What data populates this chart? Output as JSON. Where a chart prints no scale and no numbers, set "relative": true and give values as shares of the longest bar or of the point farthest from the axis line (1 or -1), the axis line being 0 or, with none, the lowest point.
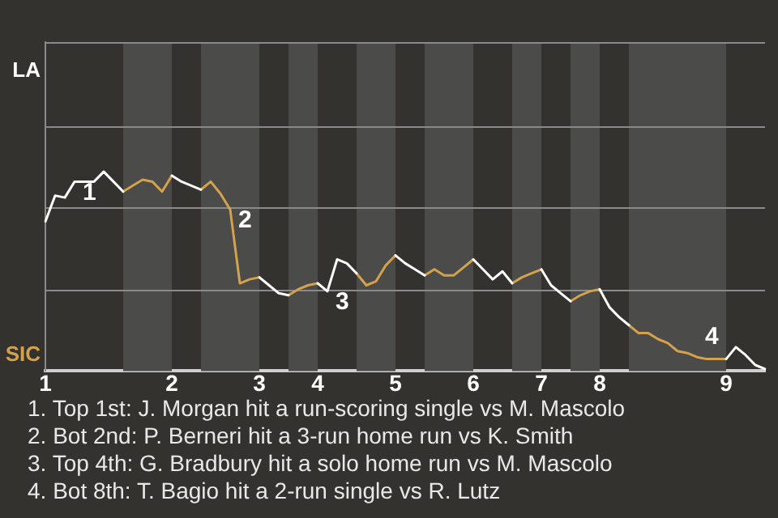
{
  "chart_data": {
    "type": "line",
    "relative": true,
    "marker": "none",
    "ref_lines": [
      {
        "axis": "y",
        "value": 0.41,
        "color": "#8a8a8a"
      },
      {
        "axis": "y",
        "value": 0.82,
        "color": "#8a8a8a"
      },
      {
        "axis": "y",
        "value": 1.23,
        "color": "#8a8a8a"
      },
      {
        "axis": "y",
        "value": 1.65,
        "color": "#8a8a8a"
      }
    ],
    "categories": [
      "1",
      null,
      null,
      null,
      null,
      null,
      null,
      null,
      null,
      null,
      null,
      null,
      null,
      "2",
      null,
      null,
      null,
      null,
      null,
      null,
      null,
      null,
      "3",
      null,
      null,
      null,
      null,
      null,
      "4",
      null,
      null,
      null,
      null,
      null,
      null,
      null,
      "5",
      null,
      null,
      null,
      null,
      null,
      null,
      null,
      "6",
      null,
      null,
      null,
      null,
      null,
      null,
      "7",
      null,
      null,
      null,
      null,
      null,
      "8",
      null,
      null,
      null,
      null,
      null,
      null,
      null,
      null,
      null,
      null,
      null,
      null,
      "9",
      null,
      null,
      null,
      null
    ],
    "series": [
      {
        "name": "LA",
        "color": "#ffffff",
        "values": [
          0.75,
          0.88,
          0.87,
          0.95,
          0.95,
          0.95,
          1.0,
          0.95,
          0.9,
          null,
          null,
          null,
          null,
          0.98,
          0.95,
          0.93,
          0.91,
          null,
          null,
          null,
          null,
          null,
          0.47,
          0.43,
          0.39,
          0.38,
          null,
          null,
          0.44,
          0.4,
          0.56,
          0.54,
          0.49,
          null,
          null,
          null,
          0.58,
          0.54,
          0.51,
          0.48,
          null,
          null,
          null,
          null,
          0.56,
          0.51,
          0.46,
          0.5,
          0.44,
          null,
          null,
          0.51,
          0.43,
          0.39,
          0.35,
          null,
          null,
          0.41,
          0.32,
          0.27,
          0.23,
          null,
          null,
          null,
          null,
          null,
          null,
          null,
          null,
          null,
          0.06,
          0.12,
          0.08,
          0.03,
          0.01
        ],
        "line_style": "solid"
      },
      {
        "name": "SIC",
        "color": "#d4a24c",
        "values": [
          null,
          null,
          null,
          null,
          null,
          null,
          null,
          null,
          0.9,
          0.93,
          0.96,
          0.95,
          0.9,
          0.98,
          null,
          null,
          0.91,
          0.95,
          0.89,
          0.81,
          0.44,
          0.46,
          0.47,
          null,
          null,
          0.38,
          0.41,
          0.43,
          0.44,
          null,
          null,
          null,
          0.49,
          0.43,
          0.45,
          0.53,
          0.58,
          null,
          null,
          0.48,
          0.51,
          0.48,
          0.48,
          0.52,
          0.56,
          null,
          null,
          null,
          0.44,
          0.47,
          0.49,
          0.51,
          null,
          null,
          0.35,
          0.38,
          0.4,
          0.41,
          null,
          null,
          0.23,
          0.19,
          0.19,
          0.16,
          0.14,
          0.1,
          0.09,
          0.07,
          0.06,
          0.06,
          0.06,
          null,
          null,
          null,
          null
        ]
      }
    ],
    "annotations": [
      {
        "text": "1",
        "y": 0.95
      },
      {
        "text": "2",
        "y": 0.81
      },
      {
        "text": "3",
        "y": 0.4
      },
      {
        "text": "4",
        "y": 0.07
      },
      "1. Top 1st: J. Morgan hit a run-scoring single vs M. Mascolo",
      "2. Bot 2nd: P. Berneri hit a 3-run home run vs K. Smith",
      "3. Top 4th: G. Bradbury hit a solo home run vs M. Mascolo",
      "4. Bot 8th: T. Bagio hit a 2-run single vs R. Lutz"
    ]
  }
}
